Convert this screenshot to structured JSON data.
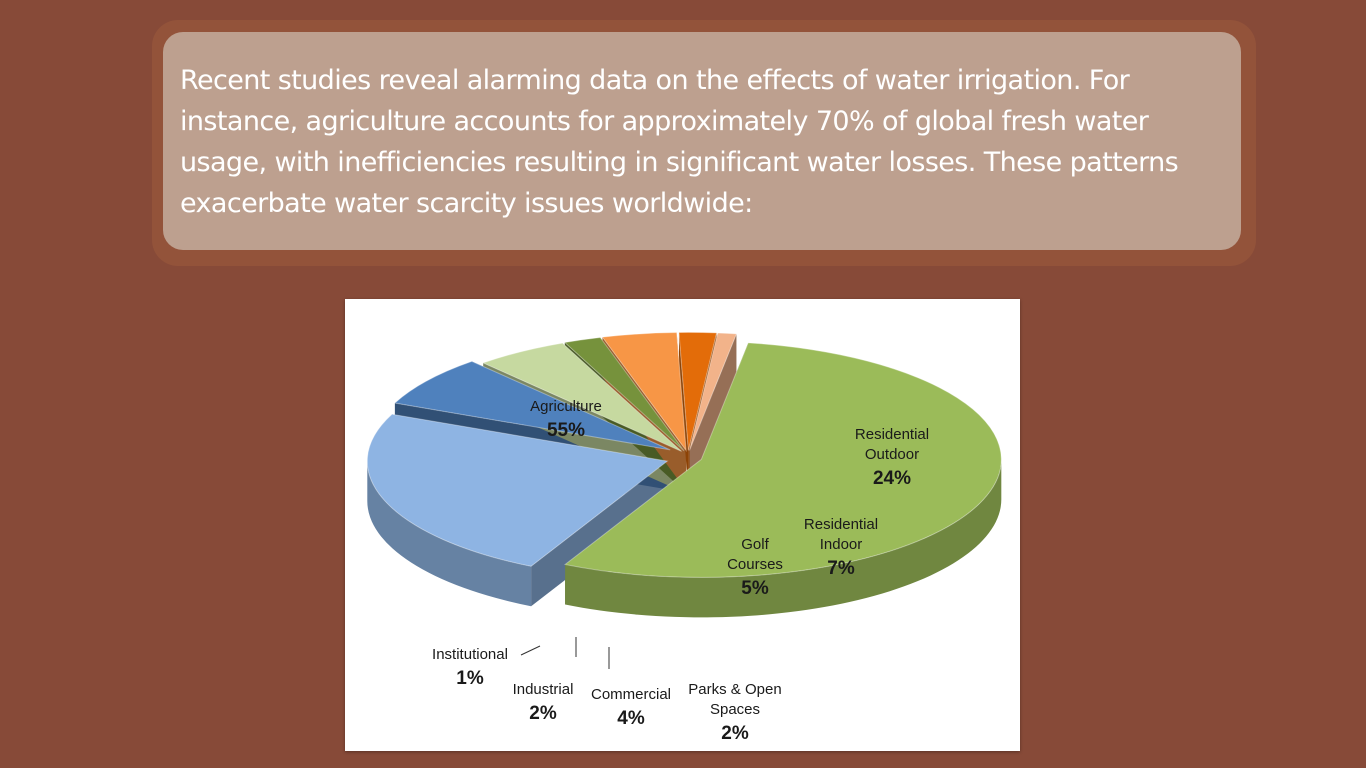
{
  "slide": {
    "paragraph": "Recent studies reveal alarming data on the effects of water irrigation. For instance, agriculture accounts for approximately 70% of global fresh water usage, with inefficiencies resulting in significant water losses. These patterns exacerbate water scarcity issues worldwide:"
  },
  "chart_data": {
    "type": "pie",
    "title": "",
    "style": "3d-exploded",
    "categories": [
      "Agriculture",
      "Residential Outdoor",
      "Residential Indoor",
      "Golf Courses",
      "Parks & Open Spaces",
      "Commercial",
      "Industrial",
      "Institutional"
    ],
    "values": [
      55,
      24,
      7,
      5,
      2,
      4,
      2,
      1
    ],
    "labels": [
      {
        "name_lines": [
          "Agriculture"
        ],
        "pct": "55%"
      },
      {
        "name_lines": [
          "Residential",
          "Outdoor"
        ],
        "pct": "24%"
      },
      {
        "name_lines": [
          "Residential",
          "Indoor"
        ],
        "pct": "7%"
      },
      {
        "name_lines": [
          "Golf",
          "Courses"
        ],
        "pct": "5%"
      },
      {
        "name_lines": [
          "Parks & Open",
          "Spaces"
        ],
        "pct": "2%"
      },
      {
        "name_lines": [
          "Commercial"
        ],
        "pct": "4%"
      },
      {
        "name_lines": [
          "Industrial"
        ],
        "pct": "2%"
      },
      {
        "name_lines": [
          "Institutional"
        ],
        "pct": "1%"
      }
    ],
    "colors": {
      "Agriculture": "#9bbb59",
      "Residential Outdoor": "#8eb4e3",
      "Residential Indoor": "#4f81bd",
      "Golf Courses": "#c6d9a0",
      "Parks & Open Spaces": "#76923c",
      "Commercial": "#f79646",
      "Industrial": "#e36c09",
      "Institutional": "#f2b38a"
    },
    "legend": "none"
  }
}
